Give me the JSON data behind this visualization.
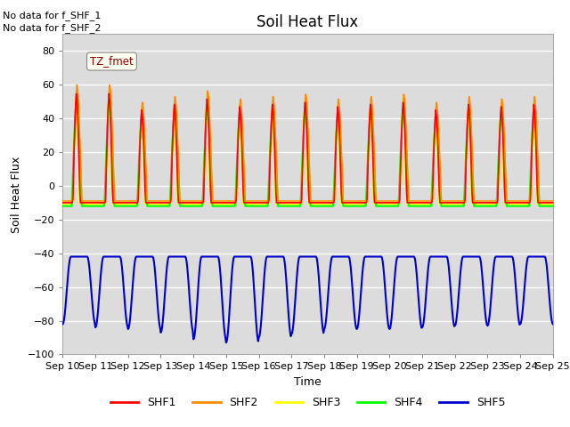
{
  "title": "Soil Heat Flux",
  "xlabel": "Time",
  "ylabel": "Soil Heat Flux",
  "ylim": [
    -100,
    90
  ],
  "yticks": [
    -100,
    -80,
    -60,
    -40,
    -20,
    0,
    20,
    40,
    60,
    80
  ],
  "x_tick_labels": [
    "Sep 10",
    "Sep 11",
    "Sep 12",
    "Sep 13",
    "Sep 14",
    "Sep 15",
    "Sep 16",
    "Sep 17",
    "Sep 18",
    "Sep 19",
    "Sep 20",
    "Sep 21",
    "Sep 22",
    "Sep 23",
    "Sep 24",
    "Sep 25"
  ],
  "text_no_data_1": "No data for f_SHF_1",
  "text_no_data_2": "No data for f_SHF_2",
  "legend_box_label": "TZ_fmet",
  "series_colors": {
    "SHF1": "#FF0000",
    "SHF2": "#FF8C00",
    "SHF3": "#FFFF00",
    "SHF4": "#00FF00",
    "SHF5": "#0000CC"
  },
  "bg_color": "#DCDCDC",
  "fig_bg": "#FFFFFF",
  "grid_color": "#FFFFFF"
}
